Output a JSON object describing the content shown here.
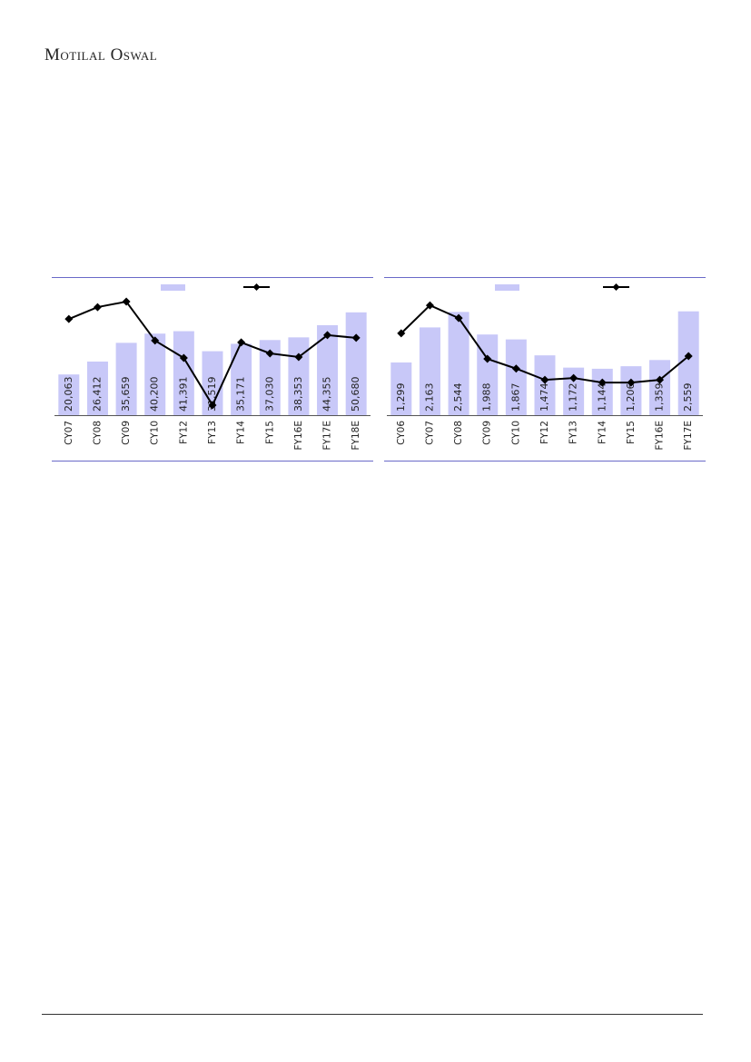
{
  "header": {
    "brand": "Motilal Oswal"
  },
  "chart_data": [
    {
      "type": "bar",
      "categories": [
        "CY07",
        "CY08",
        "CY09",
        "CY10",
        "FY12",
        "FY13",
        "FY14",
        "FY15",
        "FY16E",
        "FY17E",
        "FY18E"
      ],
      "series": [
        {
          "type": "bar",
          "color": "#c8c8f8",
          "values": [
            20063,
            26412,
            35659,
            40200,
            41391,
            31519,
            35171,
            37030,
            38353,
            44355,
            50680
          ],
          "value_labels": [
            "20,063",
            "26,412",
            "35,659",
            "40,200",
            "41,391",
            "31,519",
            "35,171",
            "37,030",
            "38,353",
            "44,355",
            "50,680"
          ]
        },
        {
          "type": "line",
          "axis": "y2",
          "color": "#000000",
          "values": [
            21.6,
            25.5,
            27.3,
            14.5,
            8.8,
            -6.7,
            13.9,
            10.3,
            9.1,
            16.3,
            15.4
          ]
        }
      ],
      "ylim": [
        0,
        60000
      ],
      "y2lim": [
        -10,
        30
      ],
      "frame_color": "#6a6ac8"
    },
    {
      "type": "bar",
      "categories": [
        "CY06",
        "CY07",
        "CY08",
        "CY09",
        "CY10",
        "FY12",
        "FY13",
        "FY14",
        "FY15",
        "FY16E",
        "FY17E"
      ],
      "series": [
        {
          "type": "bar",
          "color": "#c8c8f8",
          "values": [
            1299,
            2163,
            2544,
            1988,
            1867,
            1474,
            1172,
            1144,
            1206,
            1359,
            2559
          ],
          "value_labels": [
            "1,299",
            "2,163",
            "2,544",
            "1,988",
            "1,867",
            "1,474",
            "1,172",
            "1,144",
            "1,206",
            "1,359",
            "2,559"
          ]
        },
        {
          "type": "line",
          "axis": "y2",
          "color": "#000000",
          "values": [
            16.9,
            26.1,
            21.9,
            8.5,
            5.3,
            1.6,
            2.2,
            0.7,
            0.7,
            1.6,
            9.4
          ]
        }
      ],
      "ylim": [
        0,
        3000
      ],
      "y2lim": [
        -10,
        30
      ],
      "frame_color": "#6a6ac8"
    }
  ]
}
